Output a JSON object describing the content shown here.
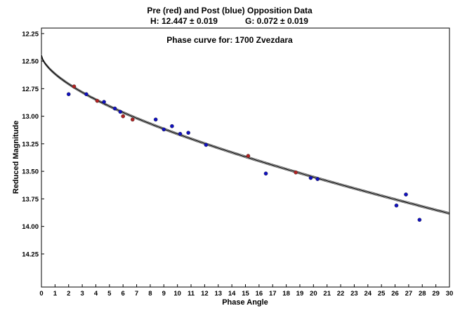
{
  "chart_data": {
    "type": "scatter",
    "title": "Pre (red) and Post (blue) Opposition Data",
    "subtitle_h": "H: 12.447 ± 0.019",
    "subtitle_g": "G: 0.072 ± 0.019",
    "annotation": "Phase curve for: 1700 Zvezdara",
    "xlabel": "Phase Angle",
    "ylabel": "Reduced Magnitude",
    "xlim": [
      0,
      30
    ],
    "ylim": [
      14.55,
      12.2
    ],
    "y_inverted": true,
    "x_ticks": [
      0,
      1,
      2,
      3,
      4,
      5,
      6,
      7,
      8,
      9,
      10,
      11,
      12,
      13,
      14,
      15,
      16,
      17,
      18,
      19,
      20,
      21,
      22,
      23,
      24,
      25,
      26,
      27,
      28,
      29,
      30
    ],
    "y_ticks": [
      "12.25",
      "12.50",
      "12.75",
      "13.00",
      "13.25",
      "13.50",
      "13.75",
      "14.00",
      "14.25"
    ],
    "grid": false,
    "colors": {
      "pre": "#b22222",
      "post": "#1010c0",
      "curve": "#000000",
      "band": "#555555"
    },
    "series": [
      {
        "name": "Pre (red)",
        "points": [
          {
            "x": 2.4,
            "y": 12.73
          },
          {
            "x": 4.1,
            "y": 12.86
          },
          {
            "x": 6.0,
            "y": 13.0
          },
          {
            "x": 6.7,
            "y": 13.03
          },
          {
            "x": 15.2,
            "y": 13.36
          },
          {
            "x": 18.7,
            "y": 13.51
          }
        ]
      },
      {
        "name": "Post (blue)",
        "points": [
          {
            "x": 2.0,
            "y": 12.8
          },
          {
            "x": 3.3,
            "y": 12.8
          },
          {
            "x": 4.6,
            "y": 12.87
          },
          {
            "x": 5.4,
            "y": 12.93
          },
          {
            "x": 5.8,
            "y": 12.96
          },
          {
            "x": 8.4,
            "y": 13.03
          },
          {
            "x": 9.0,
            "y": 13.12
          },
          {
            "x": 9.6,
            "y": 13.09
          },
          {
            "x": 10.2,
            "y": 13.16
          },
          {
            "x": 10.8,
            "y": 13.15
          },
          {
            "x": 12.1,
            "y": 13.26
          },
          {
            "x": 16.5,
            "y": 13.52
          },
          {
            "x": 19.8,
            "y": 13.56
          },
          {
            "x": 20.3,
            "y": 13.57
          },
          {
            "x": 26.1,
            "y": 13.81
          },
          {
            "x": 26.8,
            "y": 13.71
          },
          {
            "x": 27.8,
            "y": 13.94
          }
        ]
      }
    ],
    "fit_curve": {
      "H": 12.447,
      "G": 0.072,
      "uncertainty": 0.019
    }
  }
}
